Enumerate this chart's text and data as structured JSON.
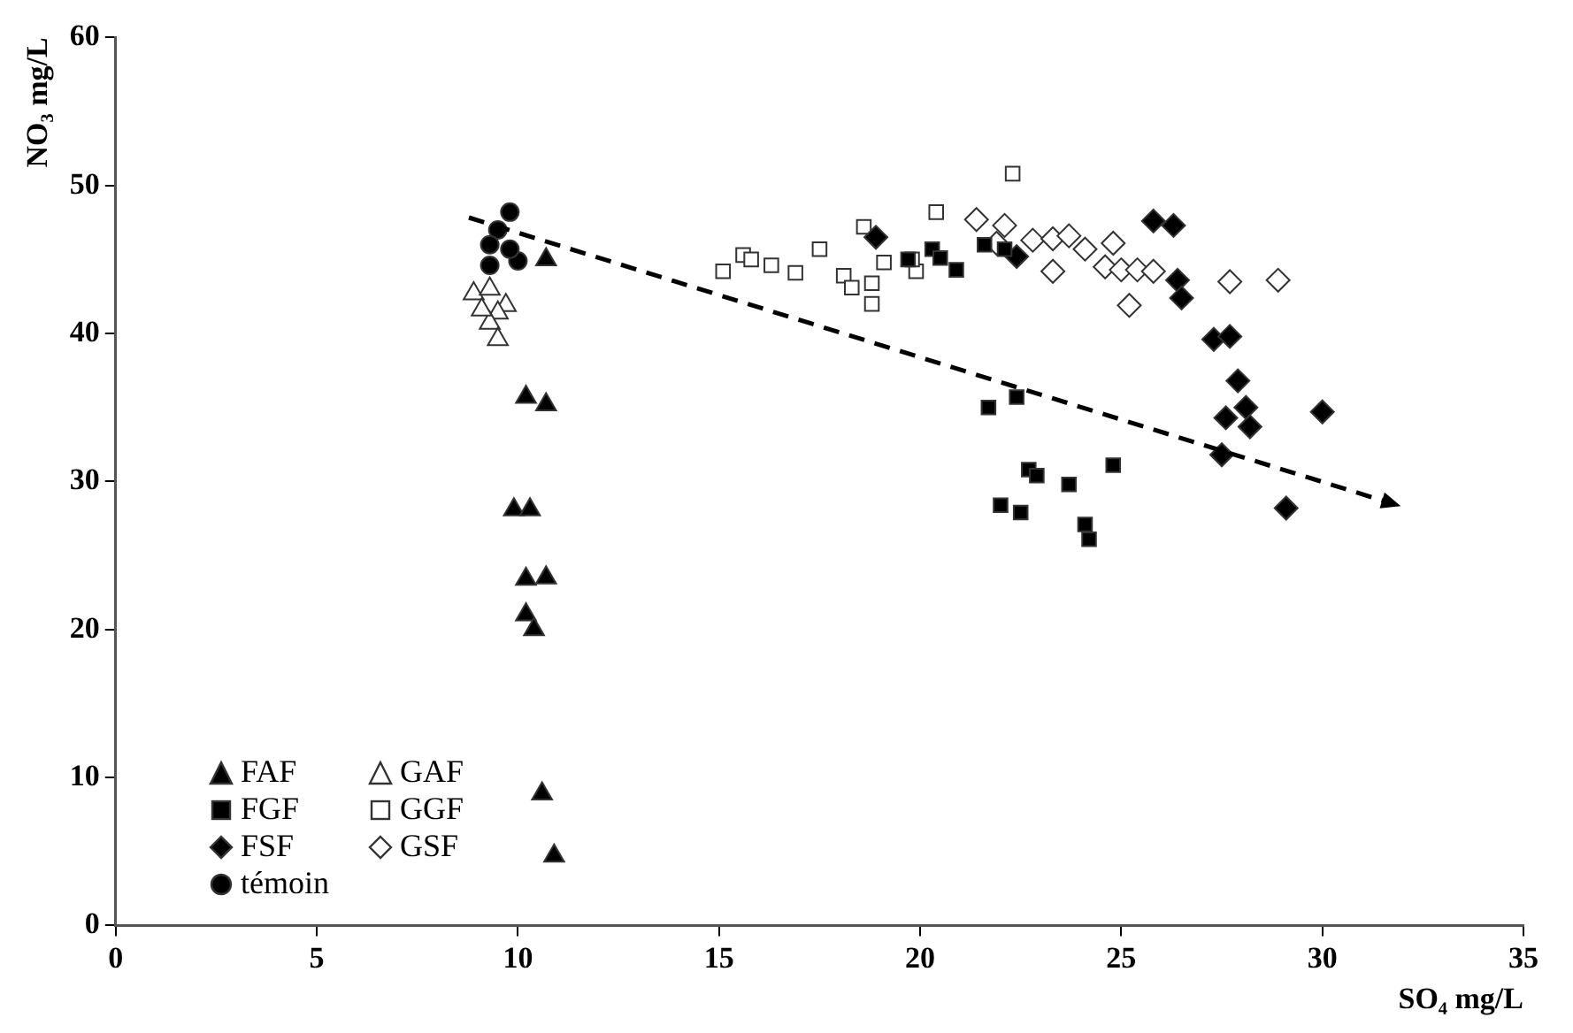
{
  "chart_data": {
    "type": "scatter",
    "xlabel": "SO₄ mg/L",
    "ylabel": "NO₃ mg/L",
    "xlim": [
      0,
      35
    ],
    "xticks": [
      0,
      5,
      10,
      15,
      20,
      25,
      30,
      35
    ],
    "ylim": [
      0,
      60
    ],
    "yticks": [
      0,
      10,
      20,
      30,
      40,
      50,
      60
    ],
    "grid": false,
    "legend": "bottom left",
    "series": [
      {
        "name": "FAF",
        "color": "#000000",
        "marker": "triangle",
        "x": [
          10.7,
          10.2,
          10.7,
          9.9,
          10.3,
          10.2,
          10.7,
          10.2,
          10.4,
          10.6,
          10.9
        ],
        "values": [
          45.0,
          35.7,
          35.2,
          28.1,
          28.1,
          23.4,
          23.5,
          21.0,
          20.0,
          8.9,
          4.7
        ]
      },
      {
        "name": "FGF",
        "color": "#000000",
        "marker": "square",
        "x": [
          19.7,
          20.3,
          20.5,
          20.9,
          21.6,
          22.1,
          21.7,
          22.4,
          22.7,
          22.9,
          23.7,
          24.8,
          22.0,
          22.5,
          24.1,
          24.2
        ],
        "values": [
          45.0,
          45.7,
          45.1,
          44.3,
          46.0,
          45.7,
          35.0,
          35.7,
          30.8,
          30.4,
          29.8,
          31.1,
          28.4,
          27.9,
          27.1,
          26.1
        ]
      },
      {
        "name": "FSF",
        "color": "#000000",
        "marker": "diamond",
        "x": [
          18.9,
          22.4,
          25.8,
          26.3,
          26.4,
          26.5,
          27.3,
          27.7,
          27.9,
          28.1,
          27.6,
          28.2,
          27.5,
          30.0,
          29.1
        ],
        "values": [
          46.5,
          45.2,
          47.6,
          47.3,
          43.6,
          42.4,
          39.6,
          39.8,
          36.8,
          35.0,
          34.3,
          33.7,
          31.8,
          34.7,
          28.2
        ]
      },
      {
        "name": "témoin",
        "color": "#000000",
        "marker": "circle",
        "x": [
          9.8,
          9.5,
          9.3,
          10.0,
          9.3,
          9.8
        ],
        "values": [
          48.2,
          47.0,
          46.0,
          44.9,
          44.6,
          45.7
        ]
      },
      {
        "name": "GAF",
        "color": "#ffffff",
        "marker": "triangle",
        "x": [
          8.9,
          9.3,
          9.7,
          9.5,
          9.3,
          9.5,
          9.1
        ],
        "values": [
          42.7,
          43.0,
          41.9,
          41.4,
          40.7,
          39.6,
          41.6
        ]
      },
      {
        "name": "GGF",
        "color": "#ffffff",
        "marker": "square",
        "x": [
          15.1,
          15.6,
          15.8,
          16.3,
          16.9,
          17.5,
          18.6,
          18.1,
          18.3,
          18.8,
          18.8,
          19.1,
          19.9,
          20.4,
          22.3,
          19.8
        ],
        "values": [
          44.2,
          45.3,
          45.0,
          44.6,
          44.1,
          45.7,
          47.2,
          43.9,
          43.1,
          42.0,
          43.4,
          44.8,
          44.2,
          48.2,
          50.8,
          45.0
        ]
      },
      {
        "name": "GSF",
        "color": "#ffffff",
        "marker": "diamond",
        "x": [
          21.4,
          22.1,
          21.9,
          22.8,
          23.3,
          23.7,
          24.1,
          23.3,
          24.8,
          24.6,
          25.0,
          25.4,
          25.8,
          25.2,
          27.7,
          28.9
        ],
        "values": [
          47.7,
          47.3,
          46.1,
          46.3,
          46.4,
          46.6,
          45.7,
          44.2,
          46.1,
          44.5,
          44.3,
          44.3,
          44.2,
          41.9,
          43.5,
          43.6
        ]
      }
    ]
  }
}
